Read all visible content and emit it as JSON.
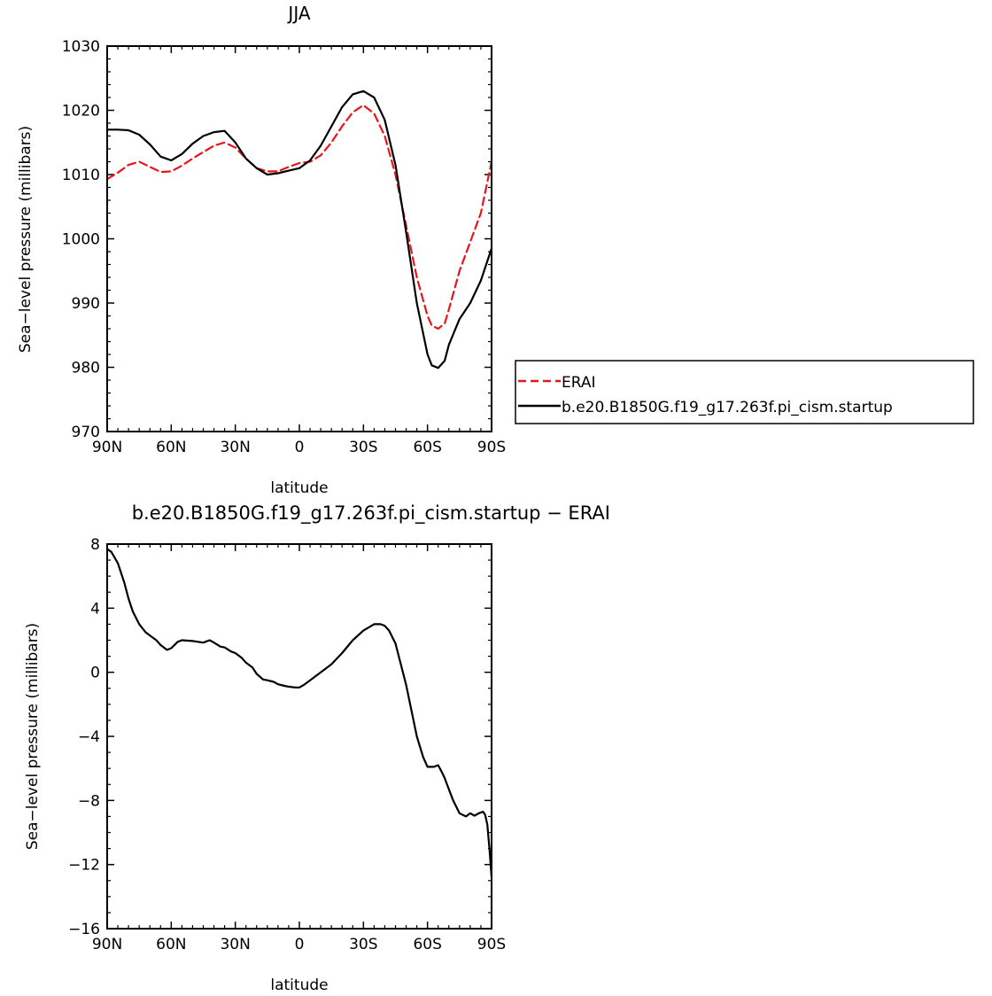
{
  "chart_data": [
    {
      "type": "line",
      "title": "JJA",
      "xlabel": "latitude",
      "ylabel": "Sea−level pressure (millibars)",
      "xlim": [
        90,
        -90
      ],
      "ylim": [
        970,
        1030
      ],
      "x_ticks": [
        90,
        60,
        30,
        0,
        -30,
        -60,
        -90
      ],
      "x_tick_labels": [
        "90N",
        "60N",
        "30N",
        "0",
        "30S",
        "60S",
        "90S"
      ],
      "y_ticks": [
        970,
        980,
        990,
        1000,
        1010,
        1020,
        1030
      ],
      "y_tick_labels": [
        "970",
        "980",
        "990",
        "1000",
        "1010",
        "1020",
        "1030"
      ],
      "grid": false,
      "legend_position": "right",
      "series": [
        {
          "name": "ERAI",
          "color": "#e8141c",
          "dash": "dashed",
          "x": [
            90,
            85,
            80,
            75,
            70,
            65,
            60,
            55,
            50,
            45,
            40,
            35,
            30,
            25,
            20,
            15,
            10,
            5,
            0,
            -5,
            -10,
            -15,
            -20,
            -25,
            -30,
            -35,
            -40,
            -45,
            -50,
            -55,
            -60,
            -62,
            -65,
            -68,
            -70,
            -75,
            -80,
            -85,
            -90
          ],
          "values": [
            1009.3,
            1010.3,
            1011.5,
            1012.0,
            1011.2,
            1010.4,
            1010.5,
            1011.4,
            1012.5,
            1013.5,
            1014.5,
            1015.0,
            1014.2,
            1012.5,
            1011.0,
            1010.5,
            1010.5,
            1011.2,
            1011.8,
            1012.0,
            1013.0,
            1015.0,
            1017.5,
            1019.7,
            1020.8,
            1019.5,
            1016.0,
            1010.0,
            1002.0,
            994.0,
            988.0,
            986.5,
            986.0,
            986.8,
            989.0,
            995.0,
            999.5,
            1004.0,
            1012.0
          ]
        },
        {
          "name": "b.e20.B1850G.f19_g17.263f.pi_cism.startup",
          "color": "#000000",
          "dash": "solid",
          "x": [
            90,
            85,
            80,
            75,
            70,
            65,
            60,
            55,
            50,
            45,
            40,
            35,
            30,
            25,
            20,
            15,
            10,
            5,
            0,
            -5,
            -10,
            -15,
            -20,
            -25,
            -30,
            -35,
            -40,
            -45,
            -50,
            -55,
            -60,
            -62,
            -65,
            -68,
            -70,
            -75,
            -80,
            -85,
            -90
          ],
          "values": [
            1017.0,
            1017.0,
            1016.9,
            1016.2,
            1014.7,
            1012.8,
            1012.2,
            1013.2,
            1014.8,
            1016.0,
            1016.6,
            1016.8,
            1015.0,
            1012.5,
            1011.0,
            1010.0,
            1010.2,
            1010.6,
            1011.0,
            1012.2,
            1014.5,
            1017.5,
            1020.5,
            1022.5,
            1023.0,
            1022.0,
            1018.5,
            1011.5,
            1001.0,
            990.0,
            982.0,
            980.3,
            979.9,
            981.0,
            983.5,
            987.5,
            990.0,
            993.5,
            998.5
          ]
        }
      ]
    },
    {
      "type": "line",
      "title": "b.e20.B1850G.f19_g17.263f.pi_cism.startup − ERAI",
      "xlabel": "latitude",
      "ylabel": "Sea−level pressure (millibars)",
      "xlim": [
        90,
        -90
      ],
      "ylim": [
        -16,
        8
      ],
      "x_ticks": [
        90,
        60,
        30,
        0,
        -30,
        -60,
        -90
      ],
      "x_tick_labels": [
        "90N",
        "60N",
        "30N",
        "0",
        "30S",
        "60S",
        "90S"
      ],
      "y_ticks": [
        -16,
        -12,
        -8,
        -4,
        0,
        4,
        8
      ],
      "y_tick_labels": [
        "−16",
        "−12",
        "−8",
        "−4",
        "0",
        "4",
        "8"
      ],
      "grid": false,
      "series": [
        {
          "color": "#000000",
          "dash": "solid",
          "x": [
            90,
            88,
            85,
            82,
            80,
            78,
            75,
            72,
            70,
            67,
            65,
            62,
            60,
            57,
            55,
            50,
            45,
            42,
            40,
            37,
            35,
            32,
            30,
            27,
            25,
            22,
            20,
            17,
            15,
            12,
            10,
            7,
            5,
            2,
            0,
            -2,
            -5,
            -10,
            -15,
            -20,
            -25,
            -30,
            -35,
            -38,
            -40,
            -42,
            -45,
            -50,
            -55,
            -58,
            -60,
            -63,
            -65,
            -67,
            -68,
            -70,
            -72,
            -75,
            -78,
            -80,
            -82,
            -84,
            -86,
            -87,
            -88,
            -89,
            -90
          ],
          "values": [
            7.7,
            7.5,
            6.8,
            5.6,
            4.6,
            3.8,
            3.0,
            2.5,
            2.3,
            2.0,
            1.7,
            1.4,
            1.5,
            1.9,
            2.0,
            1.95,
            1.85,
            2.0,
            1.85,
            1.6,
            1.55,
            1.3,
            1.2,
            0.9,
            0.6,
            0.3,
            -0.1,
            -0.45,
            -0.5,
            -0.6,
            -0.75,
            -0.85,
            -0.9,
            -0.95,
            -0.95,
            -0.8,
            -0.5,
            0.0,
            0.5,
            1.2,
            2.0,
            2.6,
            3.0,
            3.0,
            2.9,
            2.6,
            1.8,
            -0.8,
            -4.0,
            -5.3,
            -5.9,
            -5.9,
            -5.8,
            -6.3,
            -6.6,
            -7.3,
            -8.0,
            -8.8,
            -9.0,
            -8.8,
            -8.95,
            -8.8,
            -8.7,
            -8.9,
            -9.5,
            -11.0,
            -12.8
          ]
        }
      ]
    }
  ]
}
